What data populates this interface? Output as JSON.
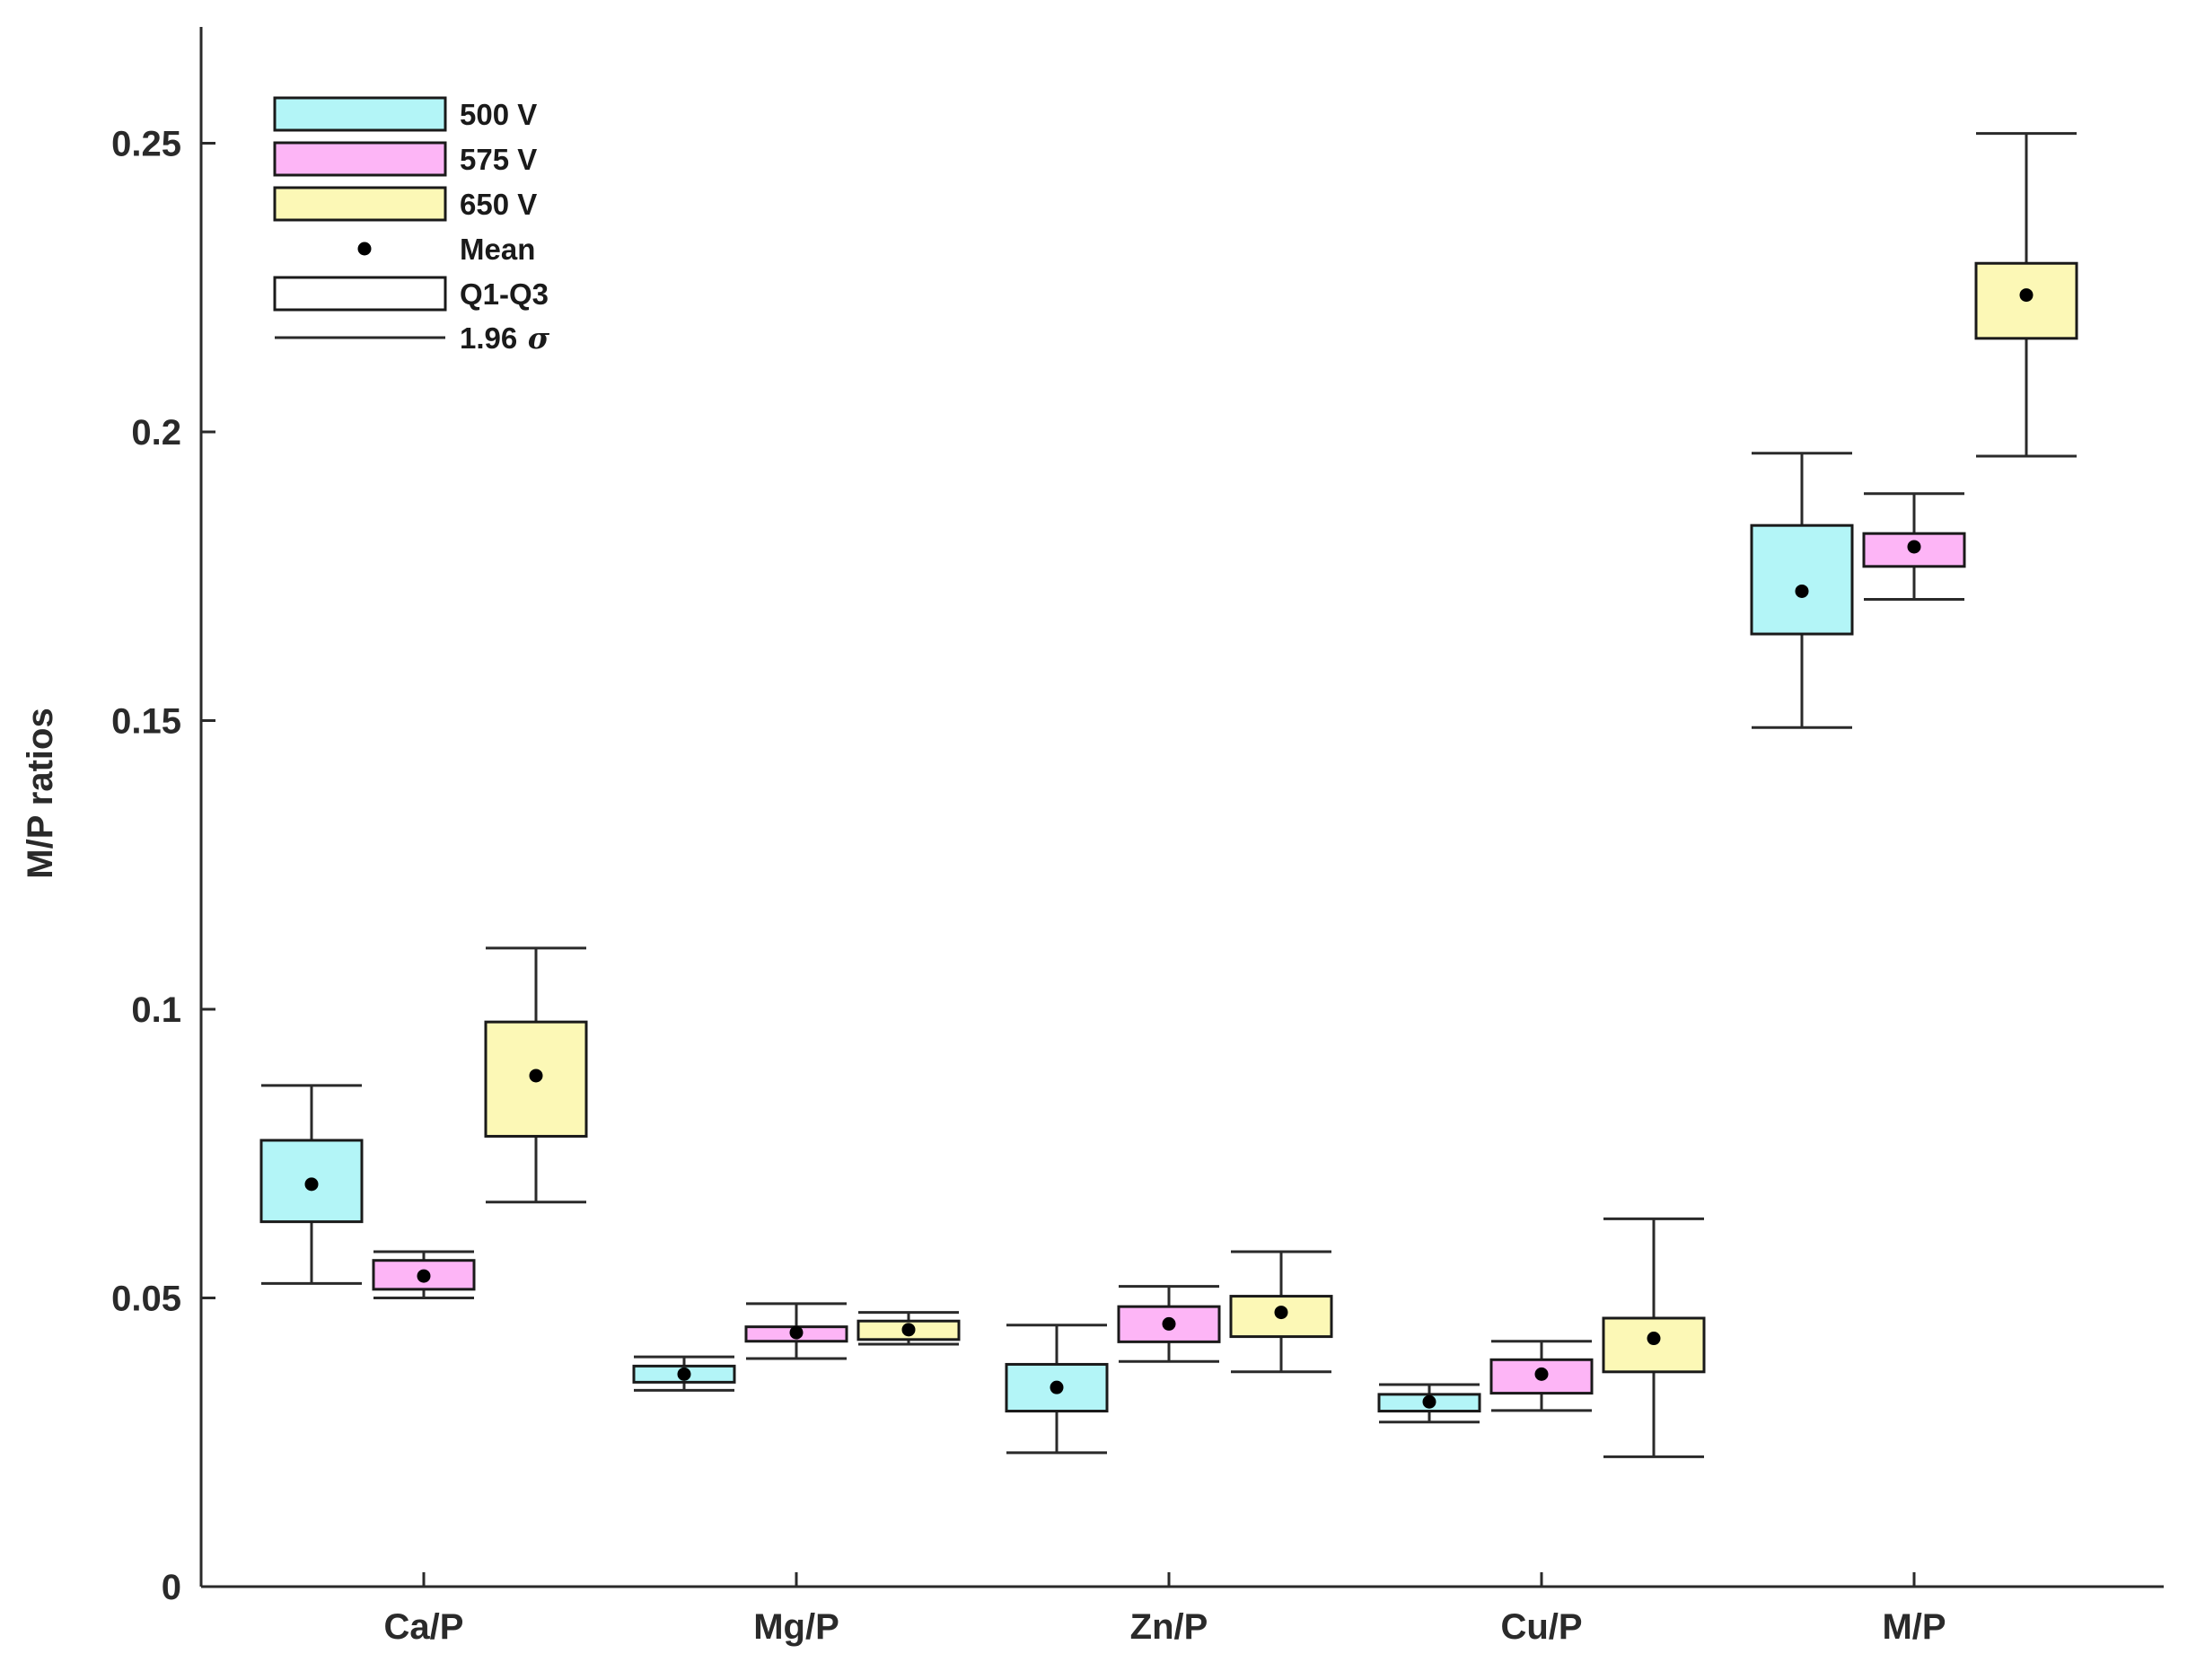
{
  "chart_data": {
    "type": "box",
    "title": "",
    "xlabel": "",
    "ylabel": "M/P ratios",
    "ylim": [
      0,
      0.27
    ],
    "yticks": [
      0,
      0.05,
      0.1,
      0.15,
      0.2,
      0.25
    ],
    "ytick_labels": [
      "0",
      "0.05",
      "0.1",
      "0.15",
      "0.2",
      "0.25"
    ],
    "categories": [
      "Ca/P",
      "Mg/P",
      "Zn/P",
      "Cu/P",
      "M/P"
    ],
    "series": [
      {
        "name": "500 V",
        "color": "#b3f5f7",
        "boxes": [
          {
            "q1": 0.0632,
            "q3": 0.0773,
            "mean": 0.0697,
            "whisker_low": 0.0525,
            "whisker_high": 0.0868
          },
          {
            "q1": 0.0354,
            "q3": 0.0382,
            "mean": 0.0368,
            "whisker_low": 0.034,
            "whisker_high": 0.0398
          },
          {
            "q1": 0.0304,
            "q3": 0.0385,
            "mean": 0.0345,
            "whisker_low": 0.0232,
            "whisker_high": 0.0453
          },
          {
            "q1": 0.0304,
            "q3": 0.0333,
            "mean": 0.032,
            "whisker_low": 0.0285,
            "whisker_high": 0.035
          },
          {
            "q1": 0.165,
            "q3": 0.1838,
            "mean": 0.1724,
            "whisker_low": 0.1488,
            "whisker_high": 0.1963
          }
        ]
      },
      {
        "name": "575 V",
        "color": "#fdb5f6",
        "boxes": [
          {
            "q1": 0.0515,
            "q3": 0.0565,
            "mean": 0.0538,
            "whisker_low": 0.05,
            "whisker_high": 0.058
          },
          {
            "q1": 0.0425,
            "q3": 0.045,
            "mean": 0.044,
            "whisker_low": 0.0395,
            "whisker_high": 0.049
          },
          {
            "q1": 0.0424,
            "q3": 0.0485,
            "mean": 0.0455,
            "whisker_low": 0.039,
            "whisker_high": 0.052
          },
          {
            "q1": 0.0335,
            "q3": 0.0393,
            "mean": 0.0368,
            "whisker_low": 0.0305,
            "whisker_high": 0.0425
          },
          {
            "q1": 0.1767,
            "q3": 0.1824,
            "mean": 0.1801,
            "whisker_low": 0.171,
            "whisker_high": 0.1893
          }
        ]
      },
      {
        "name": "650 V",
        "color": "#fcf8b6",
        "boxes": [
          {
            "q1": 0.078,
            "q3": 0.0978,
            "mean": 0.0885,
            "whisker_low": 0.0666,
            "whisker_high": 0.1106
          },
          {
            "q1": 0.0428,
            "q3": 0.046,
            "mean": 0.0445,
            "whisker_low": 0.042,
            "whisker_high": 0.0475
          },
          {
            "q1": 0.0433,
            "q3": 0.0503,
            "mean": 0.0475,
            "whisker_low": 0.0372,
            "whisker_high": 0.058
          },
          {
            "q1": 0.0372,
            "q3": 0.0465,
            "mean": 0.043,
            "whisker_low": 0.0225,
            "whisker_high": 0.0637
          },
          {
            "q1": 0.2162,
            "q3": 0.2292,
            "mean": 0.2237,
            "whisker_low": 0.1958,
            "whisker_high": 0.2517
          }
        ]
      }
    ],
    "legend": {
      "position": "top-left",
      "entries": [
        {
          "kind": "box",
          "label": "500 V",
          "series": 0
        },
        {
          "kind": "box",
          "label": "575 V",
          "series": 1
        },
        {
          "kind": "box",
          "label": "650 V",
          "series": 2
        },
        {
          "kind": "dot",
          "label": "Mean"
        },
        {
          "kind": "box-empty",
          "label": "Q1-Q3"
        },
        {
          "kind": "line",
          "label": "1.96",
          "symbol": "σ"
        }
      ]
    }
  }
}
